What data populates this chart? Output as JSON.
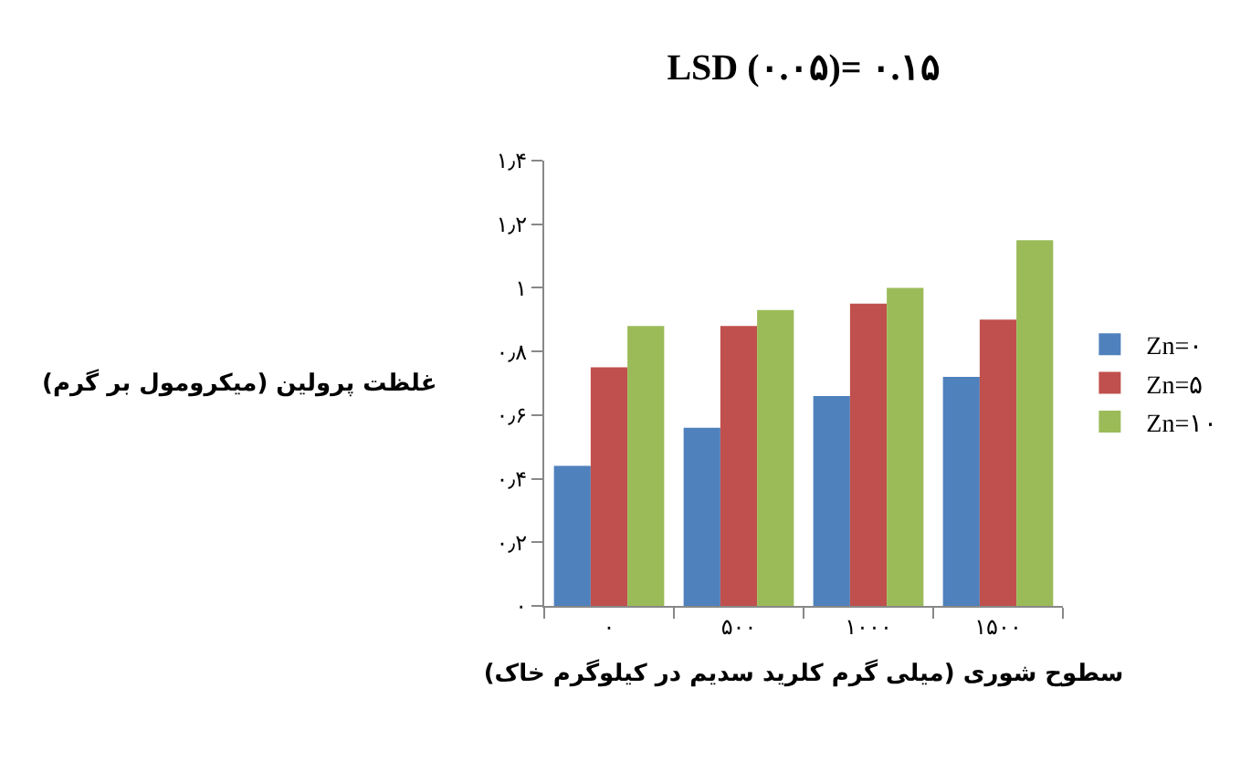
{
  "chart_data": {
    "type": "bar",
    "title": "LSD (۰.۰۵)= ۰.۱۵",
    "xlabel": "سطوح شوری (میلی گرم کلرید سدیم در کیلوگرم خاک)",
    "ylabel": "غلظت پرولین (میکرومول بر گرم)",
    "categories": [
      "۰",
      "۵۰۰",
      "۱۰۰۰",
      "۱۵۰۰"
    ],
    "series": [
      {
        "name": "Zn=۰",
        "color": "#4f81bd",
        "values": [
          0.44,
          0.56,
          0.66,
          0.72
        ]
      },
      {
        "name": "Zn=۵",
        "color": "#c0504d",
        "values": [
          0.75,
          0.88,
          0.95,
          0.9
        ]
      },
      {
        "name": "Zn=۱۰",
        "color": "#9bbb59",
        "values": [
          0.88,
          0.93,
          1.0,
          1.15
        ]
      }
    ],
    "ylim": [
      0,
      1.4
    ],
    "yticks": [
      {
        "value": 0,
        "label": "۰"
      },
      {
        "value": 0.2,
        "label": "۰٫۲"
      },
      {
        "value": 0.4,
        "label": "۰٫۴"
      },
      {
        "value": 0.6,
        "label": "۰٫۶"
      },
      {
        "value": 0.8,
        "label": "۰٫۸"
      },
      {
        "value": 1,
        "label": "۱"
      },
      {
        "value": 1.2,
        "label": "۱٫۲"
      },
      {
        "value": 1.4,
        "label": "۱٫۴"
      }
    ],
    "grid": false,
    "legend": "right"
  }
}
